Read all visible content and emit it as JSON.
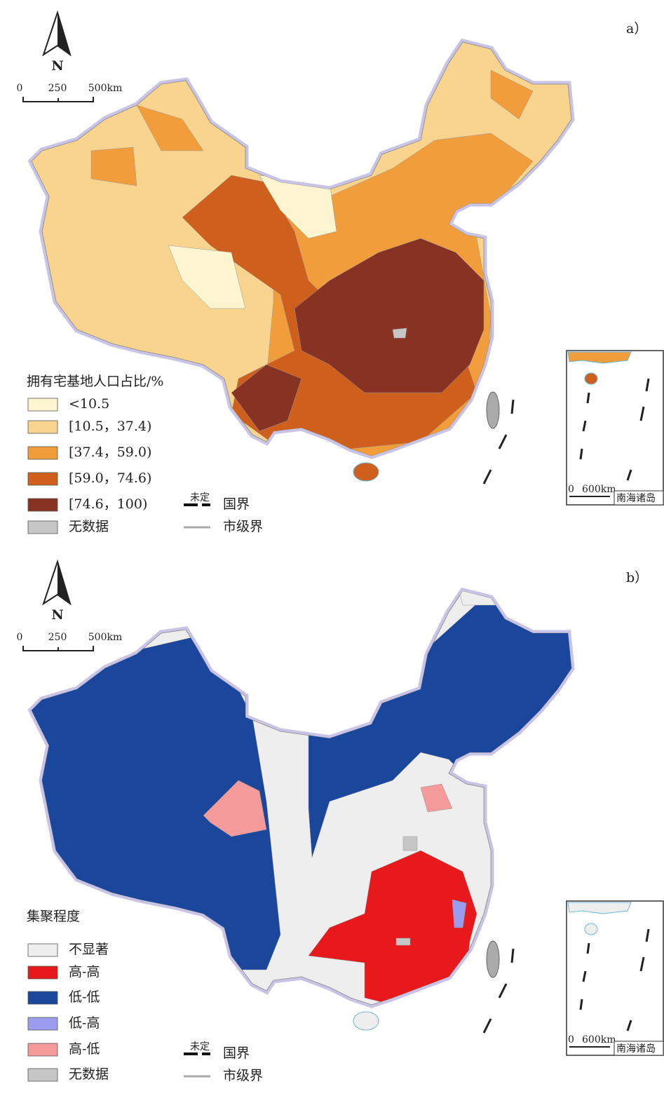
{
  "panels": [
    {
      "label": "a）",
      "north": "N",
      "scale_bar": [
        "0",
        "250",
        "500km"
      ],
      "legend": {
        "title": "拥有宅基地人口占比/%",
        "items": [
          {
            "label": "<10.5",
            "color": "#fdf5cf"
          },
          {
            "label": "[10.5，37.4)",
            "color": "#f8d48e"
          },
          {
            "label": "[37.4，59.0)",
            "color": "#f19d3b"
          },
          {
            "label": "[59.0，74.6)",
            "color": "#cf5f1c"
          },
          {
            "label": "[74.6，100)",
            "color": "#883224"
          },
          {
            "label": "无数据",
            "color": "#c6c6c6"
          }
        ]
      },
      "boundaries": {
        "undetermined": "未定",
        "national": "国界",
        "city": "市级界"
      },
      "inset": {
        "scale": [
          "0",
          "600km"
        ],
        "label": "南海诸岛"
      }
    },
    {
      "label": "b）",
      "north": "N",
      "scale_bar": [
        "0",
        "250",
        "500km"
      ],
      "legend": {
        "title": "集聚程度",
        "items": [
          {
            "label": "不显著",
            "color": "#eeeeee"
          },
          {
            "label": "高-高",
            "color": "#e8191c"
          },
          {
            "label": "低-低",
            "color": "#1a469c"
          },
          {
            "label": "低-高",
            "color": "#9b9cf0"
          },
          {
            "label": "高-低",
            "color": "#f59a9b"
          },
          {
            "label": "无数据",
            "color": "#c6c6c6"
          }
        ]
      },
      "boundaries": {
        "undetermined": "未定",
        "national": "国界",
        "city": "市级界"
      },
      "inset": {
        "scale": [
          "0",
          "600km"
        ],
        "label": "南海诸岛"
      }
    }
  ]
}
